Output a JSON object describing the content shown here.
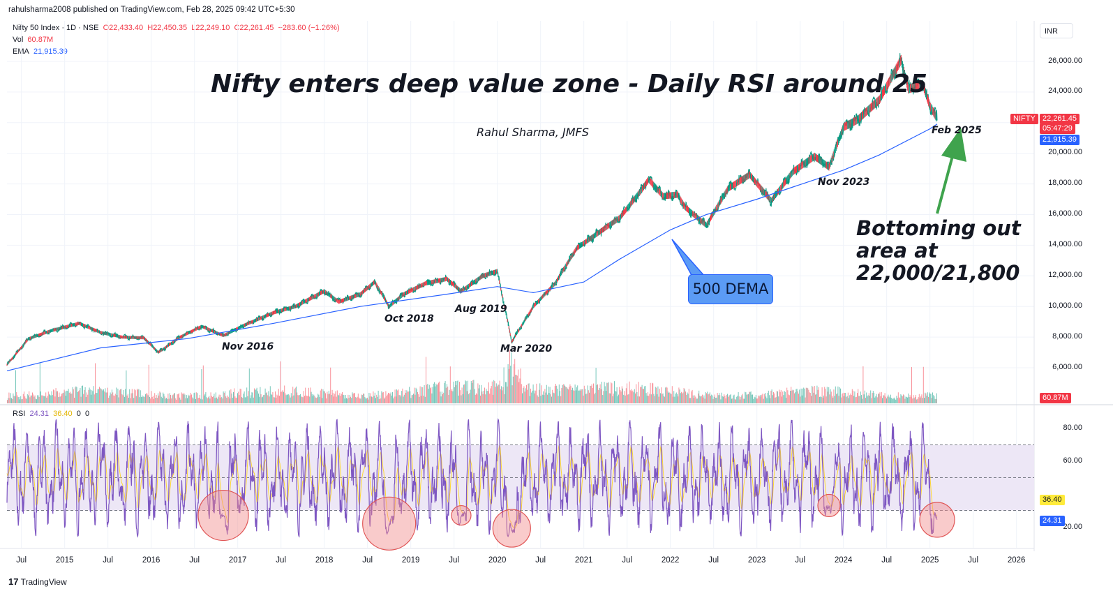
{
  "header": {
    "published_by": "rahulsharma2008 published on TradingView.com, Feb 28, 2025 09:42 UTC+5:30"
  },
  "symbol": {
    "name": "Nifty 50 Index · 1D · NSE",
    "open": "O22,433.40",
    "high": "H22,450.35",
    "low": "L22,249.10",
    "close": "C22,261.45",
    "change": "−283.60 (−1.26%)"
  },
  "volume": {
    "label": "Vol",
    "value": "60.87M"
  },
  "ema": {
    "label": "EMA",
    "value": "21,915.39"
  },
  "currency": "INR",
  "annotations": {
    "title": "Nifty enters deep value zone - Daily RSI around 25",
    "author": "Rahul Sharma, JMFS",
    "dema_label": "500 DEMA",
    "bottoming_1": "Bottoming out",
    "bottoming_2": "area at",
    "bottoming_3": "22,000/21,800",
    "nov2016": "Nov 2016",
    "oct2018": "Oct 2018",
    "aug2019": "Aug 2019",
    "mar2020": "Mar 2020",
    "nov2023": "Nov 2023",
    "feb2025": "Feb 2025"
  },
  "price_axis": {
    "ticks": [
      "26,000.00",
      "24,000.00",
      "20,000.00",
      "18,000.00",
      "16,000.00",
      "14,000.00",
      "12,000.00",
      "10,000.00",
      "8,000.00",
      "6,000.00"
    ],
    "last_label": "NIFTY",
    "last_price": "22,261.45",
    "countdown": "05:47:29",
    "ema_price": "21,915.39",
    "volume_badge": "60.87M"
  },
  "rsi_panel": {
    "label": "RSI",
    "rsi_value": "24.31",
    "ma_value": "36.40",
    "extra1": "0",
    "extra2": "0",
    "ticks": [
      "80.00",
      "60.00",
      "20.00"
    ],
    "badge_ma": "36.40",
    "badge_rsi": "24.31"
  },
  "time_axis": [
    "Jul",
    "2015",
    "Jul",
    "2016",
    "Jul",
    "2017",
    "Jul",
    "2018",
    "Jul",
    "2019",
    "Jul",
    "2020",
    "Jul",
    "2021",
    "Jul",
    "2022",
    "Jul",
    "2023",
    "Jul",
    "2024",
    "Jul",
    "2025",
    "Jul",
    "2026"
  ],
  "branding": "TradingView",
  "colors": {
    "down": "#f23645",
    "up": "#089981",
    "ema": "#2962ff",
    "rsi": "#7e57c2",
    "rsi_ma": "#fdd835",
    "rsi_band": "#ede7f6",
    "circle": "#f28b8b"
  },
  "chart_data": {
    "type": "line",
    "title": "Nifty enters deep value zone - Daily RSI around 25",
    "ylabel": "INR",
    "ylim": [
      4800,
      26800
    ],
    "x_range": [
      "2014-05",
      "2026-02"
    ],
    "series": [
      {
        "name": "Nifty 50 Index",
        "x": [
          "2014-05",
          "2014-08",
          "2014-11",
          "2015-03",
          "2015-06",
          "2015-09",
          "2015-12",
          "2016-02",
          "2016-05",
          "2016-08",
          "2016-11",
          "2017-02",
          "2017-06",
          "2017-09",
          "2018-01",
          "2018-03",
          "2018-06",
          "2018-08",
          "2018-10",
          "2018-12",
          "2019-03",
          "2019-06",
          "2019-08",
          "2019-11",
          "2020-01",
          "2020-03",
          "2020-06",
          "2020-09",
          "2020-12",
          "2021-03",
          "2021-06",
          "2021-09",
          "2021-10",
          "2021-12",
          "2022-02",
          "2022-03",
          "2022-06",
          "2022-09",
          "2022-12",
          "2023-03",
          "2023-06",
          "2023-09",
          "2023-11",
          "2024-01",
          "2024-03",
          "2024-06",
          "2024-09",
          "2024-10",
          "2024-12",
          "2025-01",
          "2025-02"
        ],
        "y": [
          6200,
          7900,
          8400,
          8900,
          8300,
          8000,
          7950,
          7000,
          8000,
          8700,
          8100,
          8800,
          9600,
          10000,
          11000,
          10300,
          10800,
          11600,
          10000,
          10800,
          11500,
          11800,
          11000,
          12000,
          12300,
          7700,
          10000,
          11500,
          13800,
          14800,
          15800,
          17600,
          18300,
          17200,
          17300,
          16500,
          15300,
          17700,
          18600,
          16900,
          18800,
          19800,
          19100,
          21700,
          22200,
          23500,
          26100,
          24200,
          24500,
          23100,
          22261
        ]
      },
      {
        "name": "EMA",
        "x": [
          "2014-05",
          "2015-06",
          "2016-06",
          "2017-06",
          "2018-06",
          "2019-06",
          "2020-01",
          "2020-06",
          "2021-01",
          "2021-06",
          "2022-01",
          "2022-06",
          "2023-01",
          "2023-06",
          "2024-01",
          "2024-06",
          "2025-01",
          "2025-02"
        ],
        "y": [
          5800,
          7300,
          7900,
          8900,
          10000,
          10800,
          11300,
          10900,
          11600,
          13100,
          15000,
          16000,
          17000,
          17800,
          18900,
          19900,
          21600,
          21915
        ]
      },
      {
        "name": "RSI",
        "x": [
          "2016-11",
          "2018-10",
          "2019-08",
          "2020-03",
          "2023-11",
          "2025-02"
        ],
        "y": [
          27,
          22,
          27,
          17,
          33,
          24.31
        ]
      }
    ],
    "rsi_levels": [
      70,
      50,
      30
    ],
    "rsi_ylim": [
      10,
      90
    ]
  }
}
